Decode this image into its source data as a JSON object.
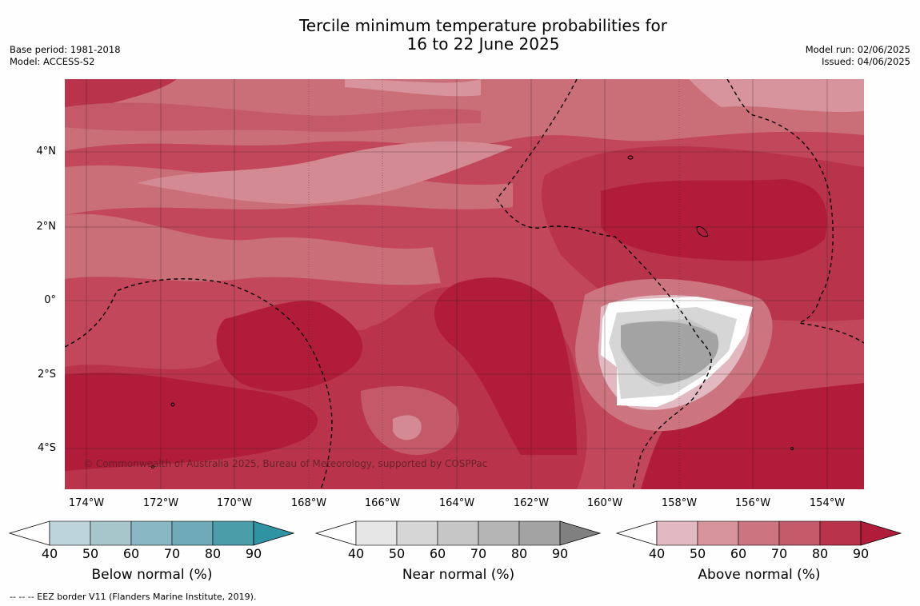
{
  "title_line1": "Tercile minimum temperature probabilities for",
  "title_line2": "16 to 22 June 2025",
  "meta_left": [
    "Base period: 1981-2018",
    "Model: ACCESS-S2"
  ],
  "meta_right": [
    "Model run: 02/06/2025",
    "Issued: 04/06/2025"
  ],
  "map": {
    "copyright": "© Commonwealth of Australia 2025, Bureau of Meteorology, supported by COSPPac",
    "lat_ticks": [
      "4°N",
      "2°N",
      "0°",
      "2°S",
      "4°S"
    ],
    "lon_ticks": [
      "174°W",
      "172°W",
      "170°W",
      "168°W",
      "166°W",
      "164°W",
      "162°W",
      "160°W",
      "158°W",
      "156°W",
      "154°W"
    ]
  },
  "colorbars": [
    {
      "title": "Below normal (%)",
      "ticks": [
        "40",
        "50",
        "60",
        "70",
        "80",
        "90"
      ],
      "colors": [
        "#ffffff",
        "#bed4db",
        "#a6c6cc",
        "#89b7c3",
        "#6eaab8",
        "#4b9daa",
        "#3093a4"
      ]
    },
    {
      "title": "Near normal (%)",
      "ticks": [
        "40",
        "50",
        "60",
        "70",
        "80",
        "90"
      ],
      "colors": [
        "#ffffff",
        "#e6e6e6",
        "#d6d6d6",
        "#c6c6c6",
        "#b5b5b5",
        "#a3a3a3",
        "#808080"
      ]
    },
    {
      "title": "Above normal (%)",
      "ticks": [
        "40",
        "50",
        "60",
        "70",
        "80",
        "90"
      ],
      "colors": [
        "#ffffff",
        "#e2b9c0",
        "#d8949c",
        "#cc7580",
        "#c35969",
        "#b9344a",
        "#b01c3a"
      ]
    }
  ],
  "footnote": "--  --  -- EEZ border V11 (Flanders Marine Institute, 2019)."
}
